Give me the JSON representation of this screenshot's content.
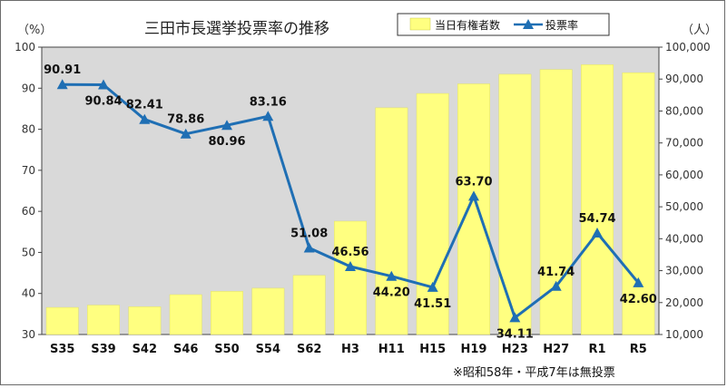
{
  "chart_data": {
    "type": "bar+line",
    "title": "三田市長選挙投票率の推移",
    "left_unit": "（%）",
    "right_unit": "（人）",
    "categories": [
      "S35",
      "S39",
      "S42",
      "S46",
      "S50",
      "S54",
      "S62",
      "H3",
      "H11",
      "H15",
      "H19",
      "H23",
      "H27",
      "R1",
      "R5"
    ],
    "series": [
      {
        "name": "当日有権者数",
        "type": "bar",
        "axis": "right",
        "color": "#ffff80",
        "values": [
          18500,
          19200,
          18700,
          22500,
          23500,
          24500,
          28500,
          45500,
          81000,
          85500,
          88500,
          91500,
          93000,
          94500,
          92000
        ]
      },
      {
        "name": "投票率",
        "type": "line",
        "axis": "left",
        "color": "#1f6fb4",
        "values": [
          90.91,
          90.84,
          82.41,
          78.86,
          80.96,
          83.16,
          51.08,
          46.56,
          44.2,
          41.51,
          63.7,
          34.11,
          41.74,
          54.74,
          42.6
        ],
        "labels": [
          "90.91",
          "90.84",
          "82.41",
          "78.86",
          "80.96",
          "83.16",
          "51.08",
          "46.56",
          "44.20",
          "41.51",
          "63.70",
          "34.11",
          "41.74",
          "54.74",
          "42.60"
        ],
        "label_pos": [
          "above",
          "below",
          "above",
          "above",
          "below",
          "above",
          "above",
          "above",
          "below",
          "below",
          "above",
          "below",
          "above",
          "above",
          "below"
        ]
      }
    ],
    "ylim_left": [
      30,
      100
    ],
    "yticks_left": [
      "30",
      "40",
      "50",
      "60",
      "70",
      "80",
      "90",
      "100"
    ],
    "ylim_right": [
      10000,
      100000
    ],
    "yticks_right": [
      "10,000",
      "20,000",
      "30,000",
      "40,000",
      "50,000",
      "60,000",
      "70,000",
      "80,000",
      "90,000",
      "100,000"
    ],
    "legend": [
      "当日有権者数",
      "投票率"
    ],
    "note": "※昭和58年・平成7年は無投票"
  }
}
